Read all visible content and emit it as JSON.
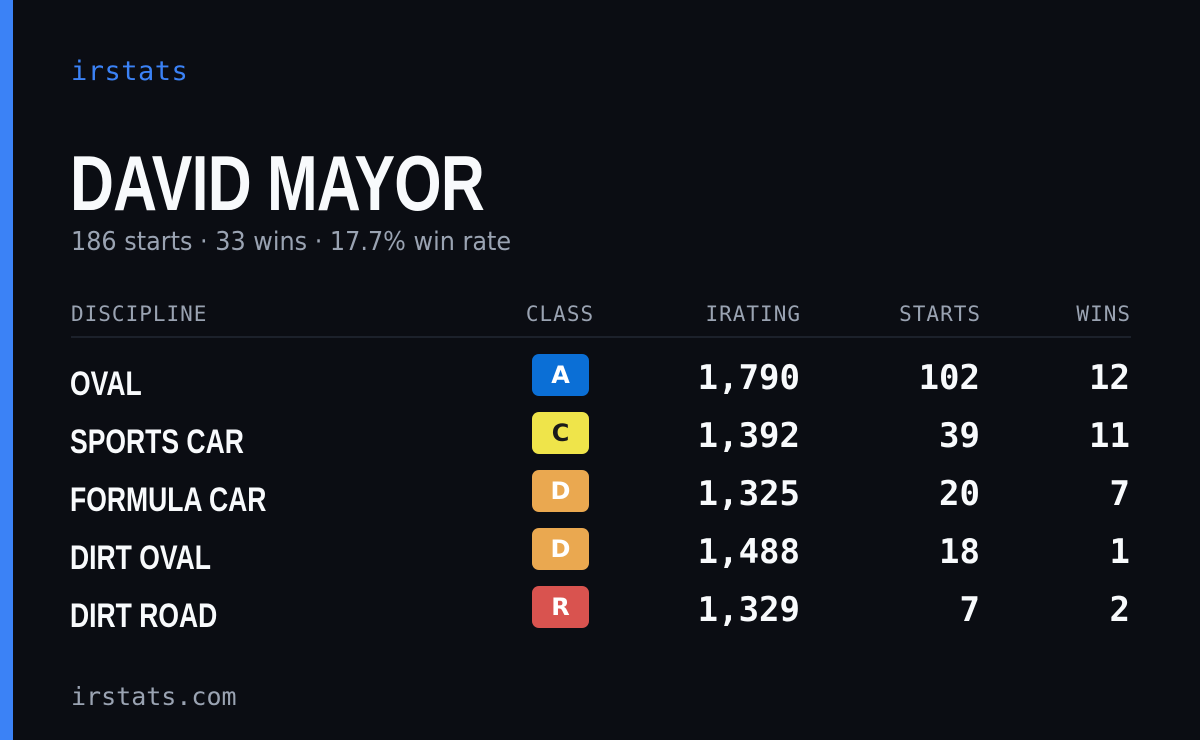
{
  "brand": "irstats",
  "driver": {
    "name": "DAVID MAYOR",
    "summary": "186 starts · 33 wins · 17.7% win rate"
  },
  "table": {
    "headers": {
      "discipline": "DISCIPLINE",
      "class": "CLASS",
      "irating": "IRATING",
      "starts": "STARTS",
      "wins": "WINS"
    },
    "rows": [
      {
        "discipline": "OVAL",
        "class": "A",
        "irating": "1,790",
        "starts": "102",
        "wins": "12",
        "badge_bg": "#0b6fd6",
        "badge_fg": "#ffffff"
      },
      {
        "discipline": "SPORTS CAR",
        "class": "C",
        "irating": "1,392",
        "starts": "39",
        "wins": "11",
        "badge_bg": "#efe44a",
        "badge_fg": "#1a1a1a"
      },
      {
        "discipline": "FORMULA CAR",
        "class": "D",
        "irating": "1,325",
        "starts": "20",
        "wins": "7",
        "badge_bg": "#eaa850",
        "badge_fg": "#ffffff"
      },
      {
        "discipline": "DIRT OVAL",
        "class": "D",
        "irating": "1,488",
        "starts": "18",
        "wins": "1",
        "badge_bg": "#eaa850",
        "badge_fg": "#ffffff"
      },
      {
        "discipline": "DIRT ROAD",
        "class": "R",
        "irating": "1,329",
        "starts": "7",
        "wins": "2",
        "badge_bg": "#d9534f",
        "badge_fg": "#ffffff"
      }
    ]
  },
  "footer": "irstats.com",
  "colors": {
    "accent": "#3b82f6",
    "background": "#0b0d13",
    "muted": "#9aa3b2"
  }
}
